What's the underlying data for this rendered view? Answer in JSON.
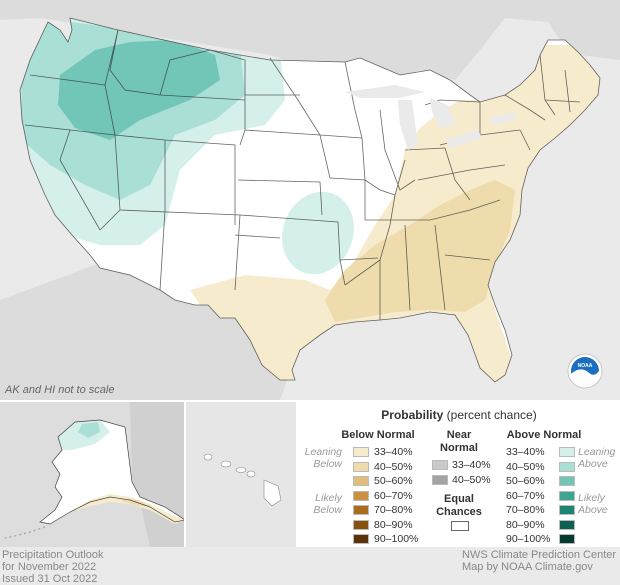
{
  "map": {
    "scale_note": "AK and HI not to scale",
    "logo_text": "NOAA"
  },
  "legend": {
    "title_bold": "Probability",
    "title_rest": " (percent chance)",
    "below_header": "Below Normal",
    "near_header_line1": "Near",
    "near_header_line2": "Normal",
    "above_header": "Above Normal",
    "equal_line1": "Equal",
    "equal_line2": "Chances",
    "leaning_below": [
      "Leaning",
      "Below"
    ],
    "likely_below": [
      "Likely",
      "Below"
    ],
    "leaning_above": [
      "Leaning",
      "Above"
    ],
    "likely_above": [
      "Likely",
      "Above"
    ],
    "below_bins": [
      {
        "label": "33–40%",
        "color": "#f7ebcd"
      },
      {
        "label": "40–50%",
        "color": "#eedcac"
      },
      {
        "label": "50–60%",
        "color": "#dfbd7a"
      },
      {
        "label": "60–70%",
        "color": "#c9913f"
      },
      {
        "label": "70–80%",
        "color": "#a96c1f"
      },
      {
        "label": "80–90%",
        "color": "#87510f"
      },
      {
        "label": "90–100%",
        "color": "#5a3408"
      }
    ],
    "near_bins": [
      {
        "label": "33–40%",
        "color": "#c9c9c9"
      },
      {
        "label": "40–50%",
        "color": "#a3a3a3"
      }
    ],
    "above_bins": [
      {
        "label": "33–40%",
        "color": "#d5efeb"
      },
      {
        "label": "40–50%",
        "color": "#aadfd6"
      },
      {
        "label": "50–60%",
        "color": "#72c6b7"
      },
      {
        "label": "60–70%",
        "color": "#3ea593"
      },
      {
        "label": "70–80%",
        "color": "#1f8371"
      },
      {
        "label": "80–90%",
        "color": "#0d6152"
      },
      {
        "label": "90–100%",
        "color": "#053b31"
      }
    ]
  },
  "footer": {
    "left_line1": "Precipitation Outlook",
    "left_line2": "for November 2022",
    "left_line3": "Issued 31 Oct 2022",
    "right_line1": "NWS Climate Prediction Center",
    "right_line2": "Map by NOAA Climate.gov"
  }
}
